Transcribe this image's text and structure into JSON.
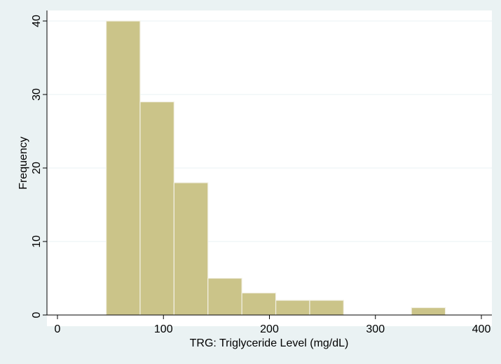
{
  "chart_data": {
    "type": "bar",
    "title": "",
    "xlabel": "TRG: Triglyceride Level (mg/dL)",
    "ylabel": "Frequency",
    "xlim": [
      0,
      400
    ],
    "ylim": [
      0,
      40
    ],
    "x_ticks": [
      0,
      100,
      200,
      300,
      400
    ],
    "y_ticks": [
      0,
      10,
      20,
      30,
      40
    ],
    "bin_edges": [
      46,
      78,
      110,
      142,
      174,
      206,
      238,
      270,
      302,
      334,
      366
    ],
    "values": [
      40,
      29,
      18,
      5,
      3,
      2,
      2,
      0,
      0,
      1
    ],
    "grid": true,
    "legend": "none",
    "colors": {
      "background": "#eaf2f3",
      "plot_area": "#ffffff",
      "bar_fill": "#cbc489",
      "bar_stroke": "#f2f0e4",
      "grid": "#eaf2f3",
      "axis": "#000000"
    }
  }
}
